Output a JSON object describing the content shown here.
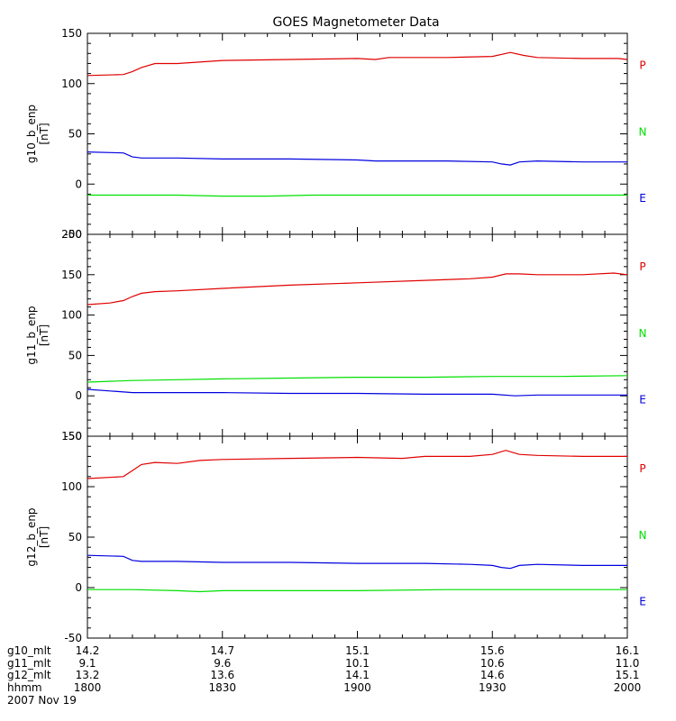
{
  "chart_data": {
    "type": "line",
    "title": "GOES Magnetometer Data",
    "date_label": "2007 Nov 19",
    "x_range_minutes": [
      0,
      120
    ],
    "x_ticks_minutes": [
      0,
      30,
      60,
      90,
      120
    ],
    "x_minor_step_minutes": 5,
    "orbit_rows": [
      {
        "label": "g10_mlt",
        "values": [
          "14.2",
          "14.7",
          "15.1",
          "15.6",
          "16.1"
        ]
      },
      {
        "label": "g11_mlt",
        "values": [
          "9.1",
          "9.6",
          "10.1",
          "10.6",
          "11.0"
        ]
      },
      {
        "label": "g12_mlt",
        "values": [
          "13.2",
          "13.6",
          "14.1",
          "14.6",
          "15.1"
        ]
      },
      {
        "label": "hhmm",
        "values": [
          "1800",
          "1830",
          "1900",
          "1930",
          "2000"
        ]
      }
    ],
    "colors": {
      "P": "#e00000",
      "N": "#00e000",
      "E": "#0000e0"
    },
    "panels": [
      {
        "ylabel": "g10_b_enp",
        "yunit": "[nT]",
        "ylim": [
          -50,
          150
        ],
        "yticks": [
          -50,
          0,
          50,
          100,
          150
        ],
        "y_minor_step": 10,
        "component_labels": [
          "P",
          "N",
          "E"
        ],
        "series": [
          {
            "name": "P",
            "x": [
              0,
              8,
              10,
              12,
              15,
              20,
              30,
              45,
              60,
              64,
              67,
              80,
              90,
              94,
              97,
              100,
              110,
              118,
              120
            ],
            "y": [
              108,
              109,
              112,
              116,
              120,
              120,
              123,
              124,
              125,
              124,
              126,
              126,
              127,
              131,
              128,
              126,
              125,
              125,
              124
            ]
          },
          {
            "name": "N",
            "x": [
              0,
              10,
              20,
              30,
              40,
              50,
              60,
              70,
              80,
              90,
              100,
              110,
              120
            ],
            "y": [
              -11,
              -11,
              -11,
              -12,
              -12,
              -11,
              -11,
              -11,
              -11,
              -11,
              -11,
              -11,
              -11
            ]
          },
          {
            "name": "E",
            "x": [
              0,
              8,
              10,
              12,
              15,
              20,
              30,
              45,
              60,
              64,
              67,
              80,
              90,
              92,
              94,
              96,
              100,
              110,
              118,
              120
            ],
            "y": [
              32,
              31,
              27,
              26,
              26,
              26,
              25,
              25,
              24,
              23,
              23,
              23,
              22,
              20,
              19,
              22,
              23,
              22,
              22,
              22
            ]
          }
        ]
      },
      {
        "ylabel": "g11_b_enp",
        "yunit": "[nT]",
        "ylim": [
          -50,
          200
        ],
        "yticks": [
          -50,
          0,
          50,
          100,
          150,
          200
        ],
        "y_minor_step": 10,
        "component_labels": [
          "P",
          "N",
          "E"
        ],
        "series": [
          {
            "name": "P",
            "x": [
              0,
              5,
              8,
              10,
              12,
              15,
              20,
              30,
              45,
              60,
              75,
              85,
              90,
              93,
              96,
              100,
              110,
              117,
              120
            ],
            "y": [
              113,
              115,
              118,
              123,
              127,
              129,
              130,
              133,
              137,
              140,
              143,
              145,
              147,
              151,
              151,
              150,
              150,
              152,
              150
            ]
          },
          {
            "name": "N",
            "x": [
              0,
              10,
              20,
              30,
              45,
              60,
              75,
              90,
              105,
              120
            ],
            "y": [
              17,
              19,
              20,
              21,
              22,
              23,
              23,
              24,
              24,
              25
            ]
          },
          {
            "name": "E",
            "x": [
              0,
              5,
              10,
              15,
              20,
              30,
              45,
              60,
              75,
              90,
              95,
              100,
              105,
              110,
              120
            ],
            "y": [
              8,
              6,
              4,
              4,
              4,
              4,
              3,
              3,
              2,
              2,
              0,
              1,
              1,
              1,
              1
            ]
          }
        ]
      },
      {
        "ylabel": "g12_b_enp",
        "yunit": "[nT]",
        "ylim": [
          -50,
          150
        ],
        "yticks": [
          -50,
          0,
          50,
          100,
          150
        ],
        "y_minor_step": 10,
        "component_labels": [
          "P",
          "N",
          "E"
        ],
        "series": [
          {
            "name": "P",
            "x": [
              0,
              8,
              10,
              12,
              15,
              20,
              25,
              30,
              45,
              60,
              70,
              75,
              85,
              90,
              93,
              96,
              100,
              110,
              120
            ],
            "y": [
              108,
              110,
              116,
              122,
              124,
              123,
              126,
              127,
              128,
              129,
              128,
              130,
              130,
              132,
              136,
              132,
              131,
              130,
              130
            ]
          },
          {
            "name": "N",
            "x": [
              0,
              10,
              20,
              25,
              30,
              40,
              60,
              80,
              100,
              120
            ],
            "y": [
              -2,
              -2,
              -3,
              -4,
              -3,
              -3,
              -3,
              -2,
              -2,
              -2
            ]
          },
          {
            "name": "E",
            "x": [
              0,
              8,
              10,
              12,
              15,
              20,
              30,
              45,
              60,
              75,
              85,
              90,
              92,
              94,
              96,
              100,
              110,
              120
            ],
            "y": [
              32,
              31,
              27,
              26,
              26,
              26,
              25,
              25,
              24,
              24,
              23,
              22,
              20,
              19,
              22,
              23,
              22,
              22
            ]
          }
        ]
      }
    ]
  }
}
